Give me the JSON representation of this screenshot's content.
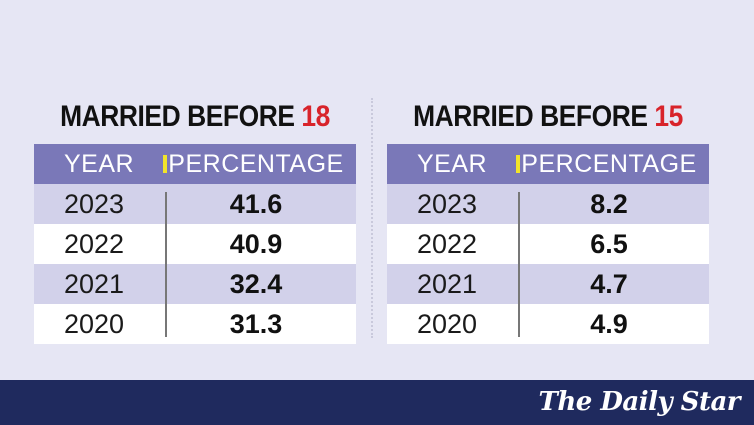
{
  "chart_data": [
    {
      "type": "table",
      "title_prefix": "MARRIED BEFORE ",
      "title_number": "18",
      "columns": [
        "YEAR",
        "PERCENTAGE"
      ],
      "rows": [
        {
          "year": "2023",
          "value": "41.6"
        },
        {
          "year": "2022",
          "value": "40.9"
        },
        {
          "year": "2021",
          "value": "32.4"
        },
        {
          "year": "2020",
          "value": "31.3"
        }
      ]
    },
    {
      "type": "table",
      "title_prefix": "MARRIED BEFORE ",
      "title_number": "15",
      "columns": [
        "YEAR",
        "PERCENTAGE"
      ],
      "rows": [
        {
          "year": "2023",
          "value": "8.2"
        },
        {
          "year": "2022",
          "value": "6.5"
        },
        {
          "year": "2021",
          "value": "4.7"
        },
        {
          "year": "2020",
          "value": "4.9"
        }
      ]
    }
  ],
  "colors": {
    "background": "#e6e6f4",
    "header": "#7a78b8",
    "accent_red": "#d8232a",
    "marker_yellow": "#f2e52a",
    "row_shade": "#d2d1ea",
    "footer": "#1f2a5e"
  },
  "footer": {
    "logo_text": "The Daily Star"
  }
}
